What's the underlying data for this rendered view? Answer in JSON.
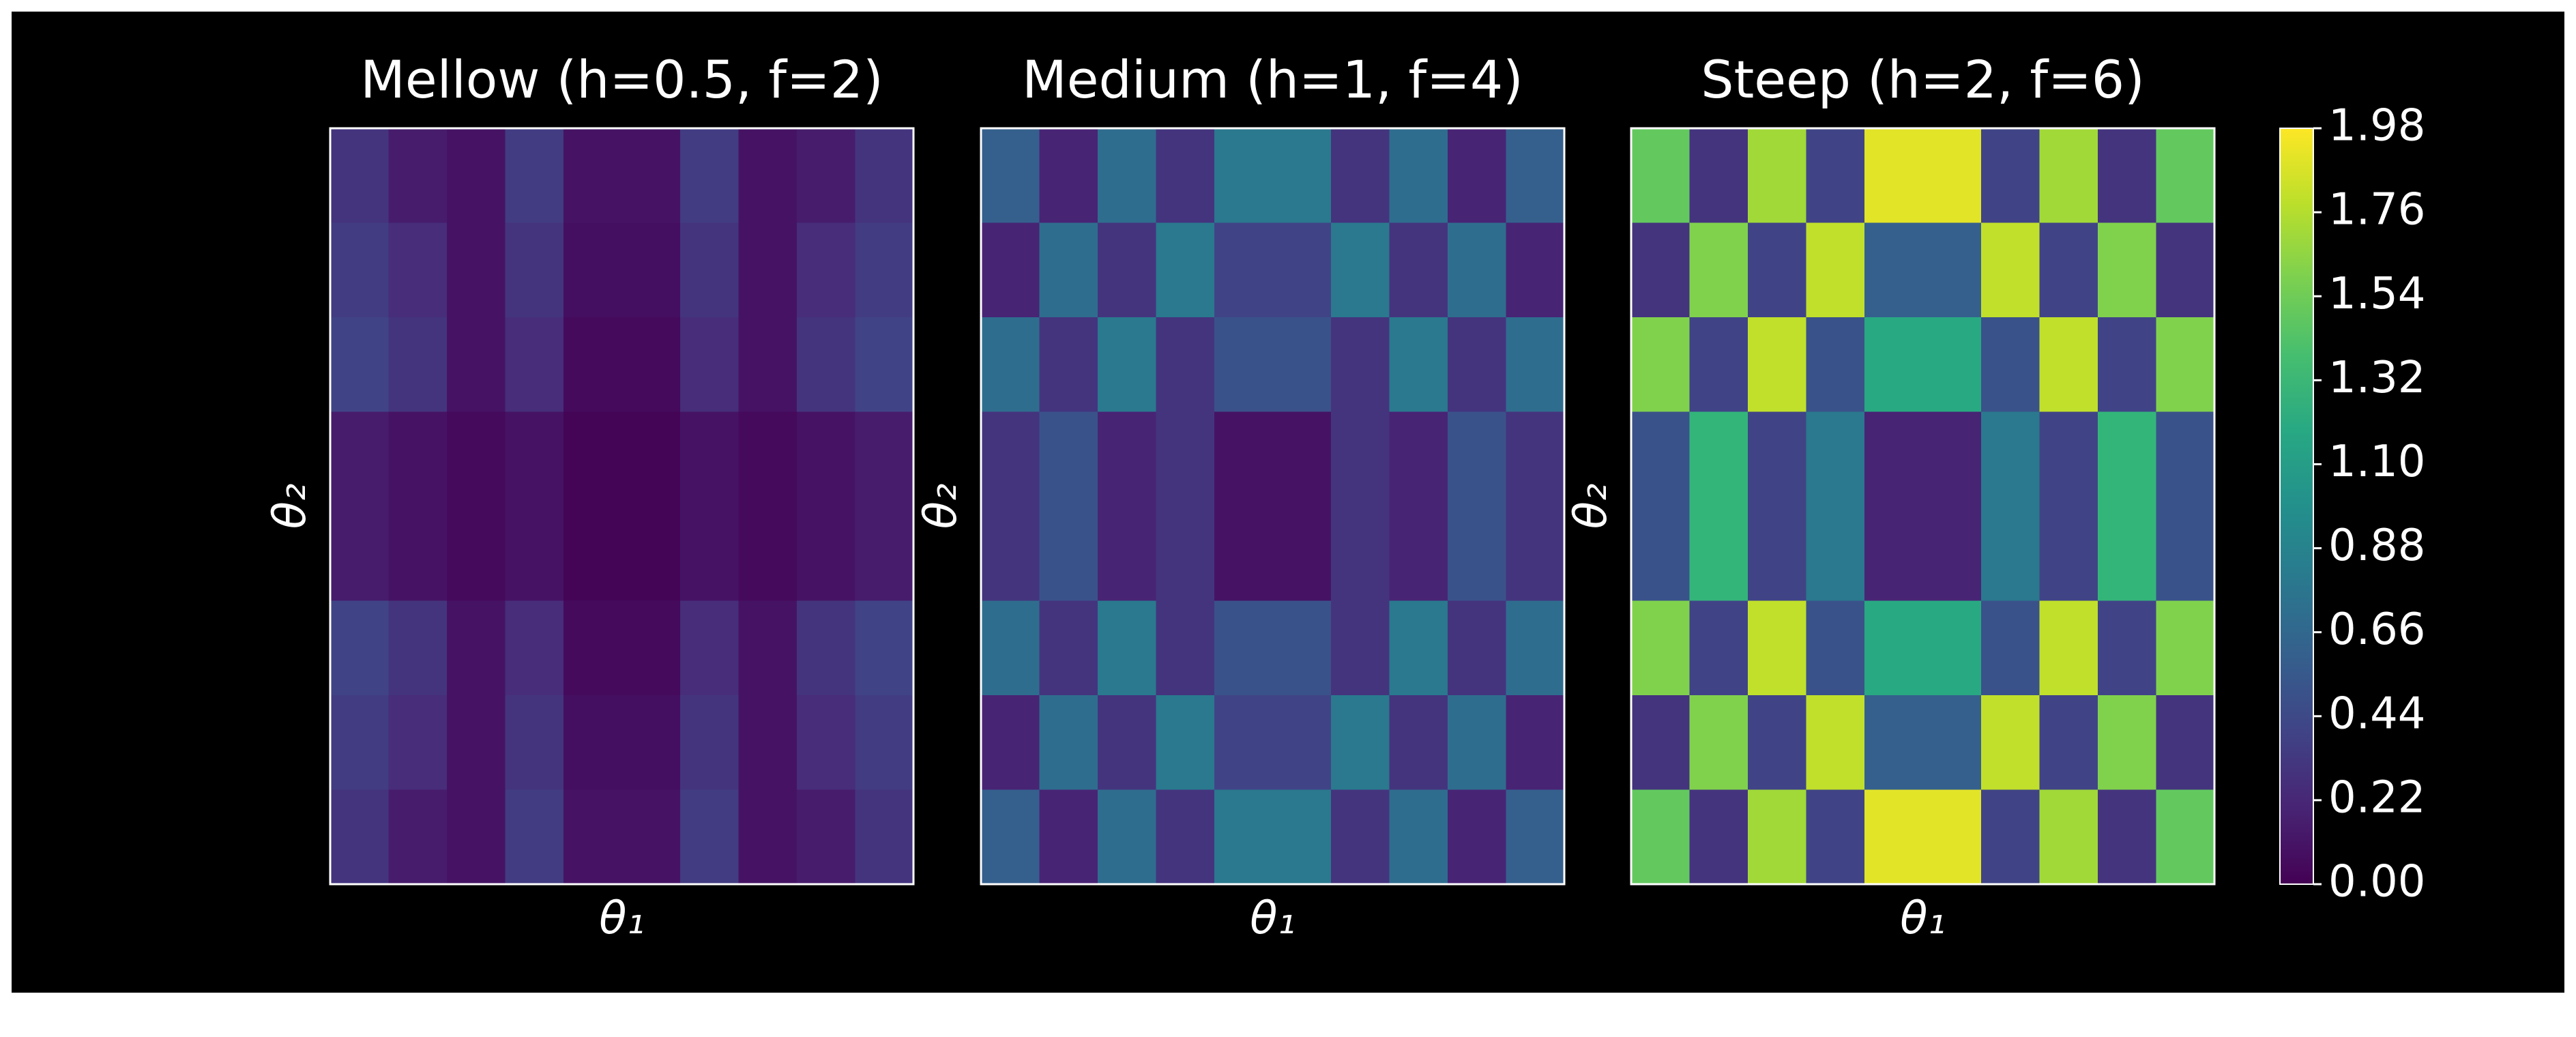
{
  "chart_data": [
    {
      "type": "heatmap",
      "title": "Mellow (h=0.5, f=2)",
      "xlabel": "θ₁",
      "ylabel": "θ₂",
      "values": [
        [
          0.3,
          0.15,
          0.1,
          0.35,
          0.1,
          0.1,
          0.35,
          0.1,
          0.15,
          0.3
        ],
        [
          0.35,
          0.25,
          0.1,
          0.3,
          0.08,
          0.08,
          0.3,
          0.1,
          0.25,
          0.35
        ],
        [
          0.4,
          0.3,
          0.1,
          0.25,
          0.05,
          0.05,
          0.25,
          0.1,
          0.3,
          0.4
        ],
        [
          0.15,
          0.1,
          0.05,
          0.1,
          0.02,
          0.02,
          0.1,
          0.05,
          0.1,
          0.15
        ],
        [
          0.15,
          0.1,
          0.05,
          0.1,
          0.02,
          0.02,
          0.1,
          0.05,
          0.1,
          0.15
        ],
        [
          0.4,
          0.3,
          0.1,
          0.25,
          0.05,
          0.05,
          0.25,
          0.1,
          0.3,
          0.4
        ],
        [
          0.35,
          0.25,
          0.1,
          0.3,
          0.08,
          0.08,
          0.3,
          0.1,
          0.25,
          0.35
        ],
        [
          0.3,
          0.15,
          0.1,
          0.35,
          0.1,
          0.1,
          0.35,
          0.1,
          0.15,
          0.3
        ]
      ]
    },
    {
      "type": "heatmap",
      "title": "Medium (h=1, f=4)",
      "xlabel": "θ₁",
      "ylabel": "θ₂",
      "values": [
        [
          0.6,
          0.2,
          0.7,
          0.3,
          0.8,
          0.8,
          0.3,
          0.7,
          0.2,
          0.6
        ],
        [
          0.2,
          0.7,
          0.3,
          0.8,
          0.4,
          0.4,
          0.8,
          0.3,
          0.7,
          0.2
        ],
        [
          0.7,
          0.3,
          0.8,
          0.3,
          0.5,
          0.5,
          0.3,
          0.8,
          0.3,
          0.7
        ],
        [
          0.3,
          0.5,
          0.2,
          0.3,
          0.1,
          0.1,
          0.3,
          0.2,
          0.5,
          0.3
        ],
        [
          0.3,
          0.5,
          0.2,
          0.3,
          0.1,
          0.1,
          0.3,
          0.2,
          0.5,
          0.3
        ],
        [
          0.7,
          0.3,
          0.8,
          0.3,
          0.5,
          0.5,
          0.3,
          0.8,
          0.3,
          0.7
        ],
        [
          0.2,
          0.7,
          0.3,
          0.8,
          0.4,
          0.4,
          0.8,
          0.3,
          0.7,
          0.2
        ],
        [
          0.6,
          0.2,
          0.7,
          0.3,
          0.8,
          0.8,
          0.3,
          0.7,
          0.2,
          0.6
        ]
      ]
    },
    {
      "type": "heatmap",
      "title": "Steep (h=2, f=6)",
      "xlabel": "θ₁",
      "ylabel": "θ₂",
      "values": [
        [
          1.5,
          0.3,
          1.7,
          0.4,
          1.9,
          1.9,
          0.4,
          1.7,
          0.3,
          1.5
        ],
        [
          0.3,
          1.6,
          0.4,
          1.8,
          0.6,
          0.6,
          1.8,
          0.4,
          1.6,
          0.3
        ],
        [
          1.6,
          0.4,
          1.8,
          0.5,
          1.2,
          1.2,
          0.5,
          1.8,
          0.4,
          1.6
        ],
        [
          0.5,
          1.3,
          0.4,
          0.8,
          0.2,
          0.2,
          0.8,
          0.4,
          1.3,
          0.5
        ],
        [
          0.5,
          1.3,
          0.4,
          0.8,
          0.2,
          0.2,
          0.8,
          0.4,
          1.3,
          0.5
        ],
        [
          1.6,
          0.4,
          1.8,
          0.5,
          1.2,
          1.2,
          0.5,
          1.8,
          0.4,
          1.6
        ],
        [
          0.3,
          1.6,
          0.4,
          1.8,
          0.6,
          0.6,
          1.8,
          0.4,
          1.6,
          0.3
        ],
        [
          1.5,
          0.3,
          1.7,
          0.4,
          1.9,
          1.9,
          0.4,
          1.7,
          0.3,
          1.5
        ]
      ]
    }
  ],
  "colorbar": {
    "cmap": "viridis",
    "lim": [
      0,
      1.98
    ],
    "ticks": [
      {
        "value": 0,
        "label": "0.00"
      },
      {
        "value": 0.22,
        "label": "0.22"
      },
      {
        "value": 0.44,
        "label": "0.44"
      },
      {
        "value": 0.66,
        "label": "0.66"
      },
      {
        "value": 0.88,
        "label": "0.88"
      },
      {
        "value": 1.1,
        "label": "1.10"
      },
      {
        "value": 1.32,
        "label": "1.32"
      },
      {
        "value": 1.54,
        "label": "1.54"
      },
      {
        "value": 1.76,
        "label": "1.76"
      },
      {
        "value": 1.98,
        "label": "1.98"
      }
    ]
  }
}
